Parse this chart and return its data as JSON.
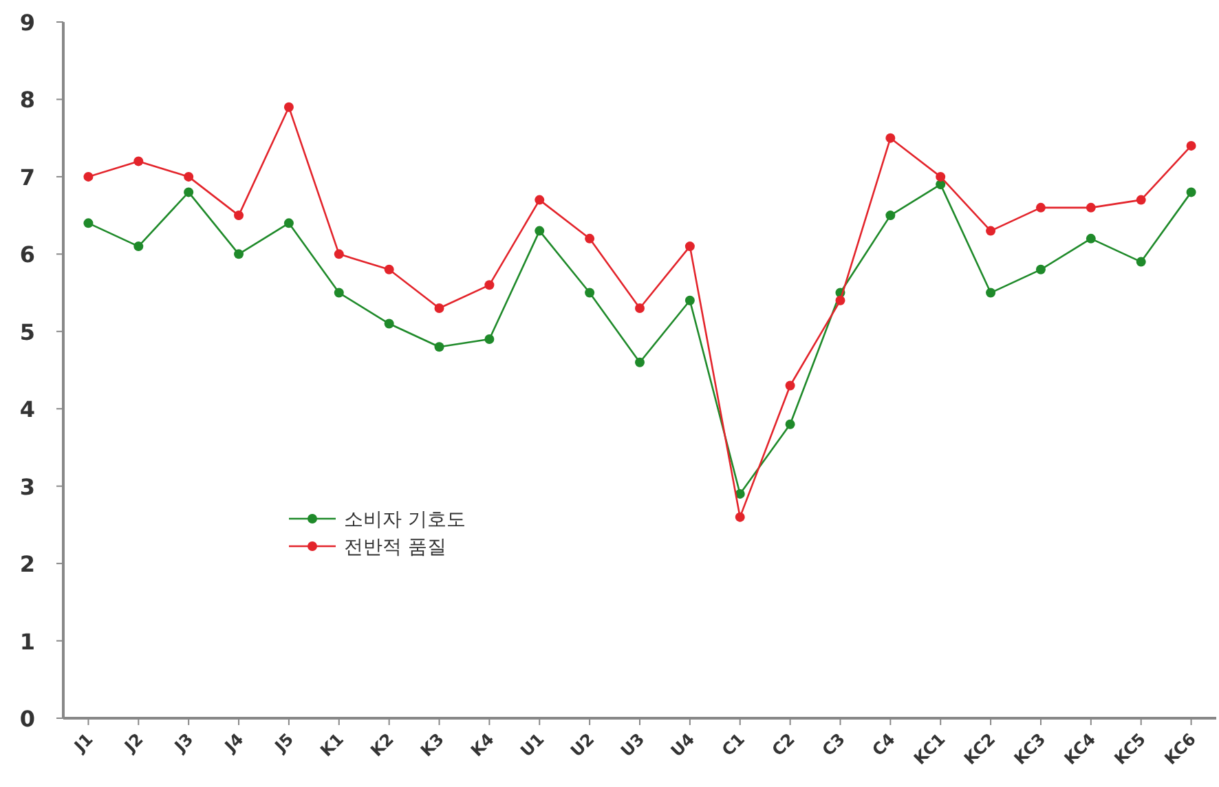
{
  "chart_data": {
    "type": "line",
    "categories": [
      "J1",
      "J2",
      "J3",
      "J4",
      "J5",
      "K1",
      "K2",
      "K3",
      "K4",
      "U1",
      "U2",
      "U3",
      "U4",
      "C1",
      "C2",
      "C3",
      "C4",
      "KC1",
      "KC2",
      "KC3",
      "KC4",
      "KC5",
      "KC6"
    ],
    "series": [
      {
        "name": "소비자 기호도",
        "color": "#1f8a2a",
        "values": [
          6.4,
          6.1,
          6.8,
          6.0,
          6.4,
          5.5,
          5.1,
          4.8,
          4.9,
          6.3,
          5.5,
          4.6,
          5.4,
          2.9,
          3.8,
          5.5,
          6.5,
          6.9,
          5.5,
          5.8,
          6.2,
          5.9,
          6.8
        ]
      },
      {
        "name": "전반적 품질",
        "color": "#e3242b",
        "values": [
          7.0,
          7.2,
          7.0,
          6.5,
          7.9,
          6.0,
          5.8,
          5.3,
          5.6,
          6.7,
          6.2,
          5.3,
          6.1,
          2.6,
          4.3,
          5.4,
          7.5,
          7.0,
          6.3,
          6.6,
          6.6,
          6.7,
          7.4
        ]
      }
    ],
    "ylim": [
      0,
      9
    ],
    "yticks": [
      0,
      1,
      2,
      3,
      4,
      5,
      6,
      7,
      8,
      9
    ],
    "grid": false,
    "legend": "left",
    "marker": "circle",
    "line_style": "solid"
  }
}
